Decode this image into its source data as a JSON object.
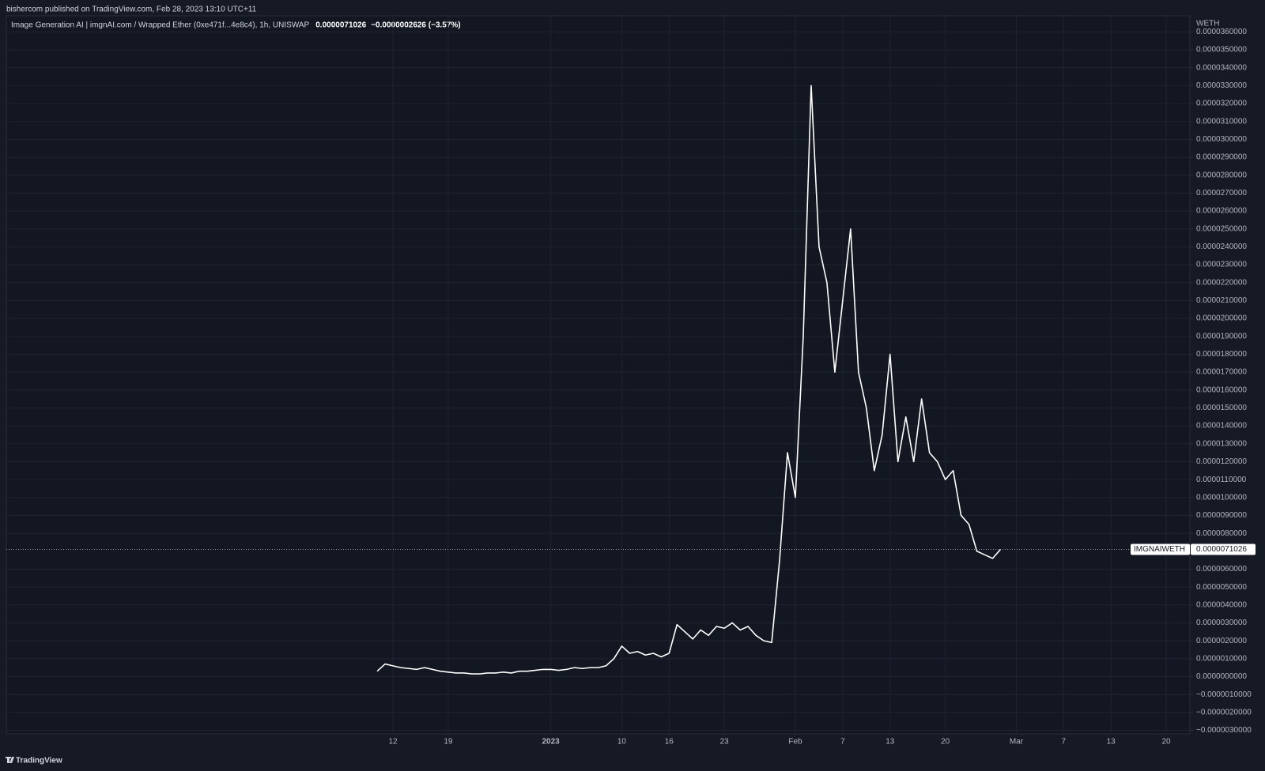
{
  "chart_data": {
    "type": "line",
    "publisher": "bishercom published on TradingView.com, Feb 28, 2023 13:10 UTC+11",
    "title": "Image Generation AI | imgnAI.com / Wrapped Ether (0xe471f...4e8c4), 1h, UNISWAP",
    "last_price": {
      "value": 7.1026e-06,
      "label": "0.0000071026"
    },
    "change": "−0.0000002626 (−3.57%)",
    "symbol": "IMGNAIWETH",
    "y_unit": "WETH",
    "brand": "TradingView",
    "color": "#ffffff",
    "grid": true,
    "x": [
      "2022-12-10",
      "2022-12-11",
      "2022-12-12",
      "2022-12-13",
      "2022-12-14",
      "2022-12-15",
      "2022-12-16",
      "2022-12-17",
      "2022-12-18",
      "2022-12-19",
      "2022-12-20",
      "2022-12-21",
      "2022-12-22",
      "2022-12-23",
      "2022-12-24",
      "2022-12-25",
      "2022-12-26",
      "2022-12-27",
      "2022-12-28",
      "2022-12-29",
      "2022-12-30",
      "2022-12-31",
      "2023-01-01",
      "2023-01-02",
      "2023-01-03",
      "2023-01-04",
      "2023-01-05",
      "2023-01-06",
      "2023-01-07",
      "2023-01-08",
      "2023-01-09",
      "2023-01-10",
      "2023-01-11",
      "2023-01-12",
      "2023-01-13",
      "2023-01-14",
      "2023-01-15",
      "2023-01-16",
      "2023-01-17",
      "2023-01-18",
      "2023-01-19",
      "2023-01-20",
      "2023-01-21",
      "2023-01-22",
      "2023-01-23",
      "2023-01-24",
      "2023-01-25",
      "2023-01-26",
      "2023-01-27",
      "2023-01-28",
      "2023-01-29",
      "2023-01-30",
      "2023-01-31",
      "2023-02-01",
      "2023-02-02",
      "2023-02-03",
      "2023-02-04",
      "2023-02-05",
      "2023-02-06",
      "2023-02-07",
      "2023-02-08",
      "2023-02-09",
      "2023-02-10",
      "2023-02-11",
      "2023-02-12",
      "2023-02-13",
      "2023-02-14",
      "2023-02-15",
      "2023-02-16",
      "2023-02-17",
      "2023-02-18",
      "2023-02-19",
      "2023-02-20",
      "2023-02-21",
      "2023-02-22",
      "2023-02-23",
      "2023-02-24",
      "2023-02-25",
      "2023-02-26",
      "2023-02-27"
    ],
    "values": [
      3e-07,
      7e-07,
      6e-07,
      5e-07,
      4.5e-07,
      4e-07,
      5e-07,
      4e-07,
      3e-07,
      2.5e-07,
      2e-07,
      2e-07,
      1.5e-07,
      1.5e-07,
      2e-07,
      2e-07,
      2.5e-07,
      2e-07,
      3e-07,
      3e-07,
      3.5e-07,
      4e-07,
      4e-07,
      3.5e-07,
      4e-07,
      5e-07,
      4.5e-07,
      5e-07,
      5e-07,
      6e-07,
      1e-06,
      1.7e-06,
      1.3e-06,
      1.4e-06,
      1.2e-06,
      1.3e-06,
      1.1e-06,
      1.3e-06,
      2.9e-06,
      2.5e-06,
      2.1e-06,
      2.6e-06,
      2.3e-06,
      2.8e-06,
      2.7e-06,
      3e-06,
      2.6e-06,
      2.8e-06,
      2.3e-06,
      2e-06,
      1.9e-06,
      6.5e-06,
      1.25e-05,
      1e-05,
      1.9e-05,
      3.3e-05,
      2.4e-05,
      2.2e-05,
      1.7e-05,
      2.1e-05,
      2.5e-05,
      1.7e-05,
      1.5e-05,
      1.15e-05,
      1.35e-05,
      1.8e-05,
      1.2e-05,
      1.45e-05,
      1.2e-05,
      1.55e-05,
      1.25e-05,
      1.2e-05,
      1.1e-05,
      1.15e-05,
      9e-06,
      8.5e-06,
      7e-06,
      6.8e-06,
      6.6e-06,
      7.1026e-06
    ],
    "xlim": [
      "2022-10-24",
      "2023-03-23"
    ],
    "xticks": [
      {
        "value": "2022-12-12",
        "label": "12"
      },
      {
        "value": "2022-12-19",
        "label": "19"
      },
      {
        "value": "2023-01-01",
        "label": "2023"
      },
      {
        "value": "2023-01-10",
        "label": "10"
      },
      {
        "value": "2023-01-16",
        "label": "16"
      },
      {
        "value": "2023-01-23",
        "label": "23"
      },
      {
        "value": "2023-02-01",
        "label": "Feb"
      },
      {
        "value": "2023-02-07",
        "label": "7"
      },
      {
        "value": "2023-02-13",
        "label": "13"
      },
      {
        "value": "2023-02-20",
        "label": "20"
      },
      {
        "value": "2023-03-01",
        "label": "Mar"
      },
      {
        "value": "2023-03-07",
        "label": "7"
      },
      {
        "value": "2023-03-13",
        "label": "13"
      },
      {
        "value": "2023-03-20",
        "label": "20"
      }
    ],
    "ylim": [
      -3.2e-06,
      3.69e-05
    ],
    "yticks": [
      {
        "value": 3.6e-05,
        "label": "0.0000360000"
      },
      {
        "value": 3.5e-05,
        "label": "0.0000350000"
      },
      {
        "value": 3.4e-05,
        "label": "0.0000340000"
      },
      {
        "value": 3.3e-05,
        "label": "0.0000330000"
      },
      {
        "value": 3.2e-05,
        "label": "0.0000320000"
      },
      {
        "value": 3.1e-05,
        "label": "0.0000310000"
      },
      {
        "value": 3e-05,
        "label": "0.0000300000"
      },
      {
        "value": 2.9e-05,
        "label": "0.0000290000"
      },
      {
        "value": 2.8e-05,
        "label": "0.0000280000"
      },
      {
        "value": 2.7e-05,
        "label": "0.0000270000"
      },
      {
        "value": 2.6e-05,
        "label": "0.0000260000"
      },
      {
        "value": 2.5e-05,
        "label": "0.0000250000"
      },
      {
        "value": 2.4e-05,
        "label": "0.0000240000"
      },
      {
        "value": 2.3e-05,
        "label": "0.0000230000"
      },
      {
        "value": 2.2e-05,
        "label": "0.0000220000"
      },
      {
        "value": 2.1e-05,
        "label": "0.0000210000"
      },
      {
        "value": 2e-05,
        "label": "0.0000200000"
      },
      {
        "value": 1.9e-05,
        "label": "0.0000190000"
      },
      {
        "value": 1.8e-05,
        "label": "0.0000180000"
      },
      {
        "value": 1.7e-05,
        "label": "0.0000170000"
      },
      {
        "value": 1.6e-05,
        "label": "0.0000160000"
      },
      {
        "value": 1.5e-05,
        "label": "0.0000150000"
      },
      {
        "value": 1.4e-05,
        "label": "0.0000140000"
      },
      {
        "value": 1.3e-05,
        "label": "0.0000130000"
      },
      {
        "value": 1.2e-05,
        "label": "0.0000120000"
      },
      {
        "value": 1.1e-05,
        "label": "0.0000110000"
      },
      {
        "value": 1e-05,
        "label": "0.0000100000"
      },
      {
        "value": 9e-06,
        "label": "0.0000090000"
      },
      {
        "value": 8e-06,
        "label": "0.0000080000"
      },
      {
        "value": 6e-06,
        "label": "0.0000060000"
      },
      {
        "value": 5e-06,
        "label": "0.0000050000"
      },
      {
        "value": 4e-06,
        "label": "0.0000040000"
      },
      {
        "value": 3e-06,
        "label": "0.0000030000"
      },
      {
        "value": 2e-06,
        "label": "0.0000020000"
      },
      {
        "value": 1e-06,
        "label": "0.0000010000"
      },
      {
        "value": 0,
        "label": "0.0000000000"
      },
      {
        "value": -1e-06,
        "label": "−0.0000010000"
      },
      {
        "value": -2e-06,
        "label": "−0.0000020000"
      },
      {
        "value": -3e-06,
        "label": "−0.0000030000"
      }
    ]
  }
}
